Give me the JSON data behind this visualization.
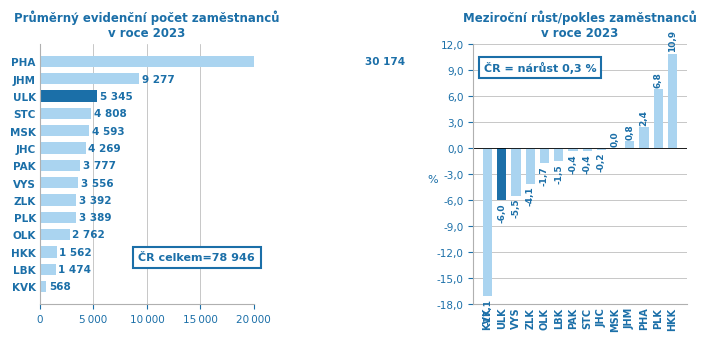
{
  "left_title": "Průměrný evidenční počet zaměstnanců\nv roce 2023",
  "left_categories": [
    "PHA",
    "JHM",
    "ULK",
    "STC",
    "MSK",
    "JHC",
    "PAK",
    "VYS",
    "ZLK",
    "PLK",
    "OLK",
    "HKK",
    "LBK",
    "KVK"
  ],
  "left_values": [
    30174,
    9277,
    5345,
    4808,
    4593,
    4269,
    3777,
    3556,
    3392,
    3389,
    2762,
    1562,
    1474,
    568
  ],
  "left_labels": [
    "30 174",
    "9 277",
    "5 345",
    "4 808",
    "4 593",
    "4 269",
    "3 777",
    "3 556",
    "3 392",
    "3 389",
    "2 762",
    "1 562",
    "1 474",
    "568"
  ],
  "left_bar_colors": [
    "#aad4f0",
    "#aad4f0",
    "#1b6fa8",
    "#aad4f0",
    "#aad4f0",
    "#aad4f0",
    "#aad4f0",
    "#aad4f0",
    "#aad4f0",
    "#aad4f0",
    "#aad4f0",
    "#aad4f0",
    "#aad4f0",
    "#aad4f0"
  ],
  "left_xlim": [
    0,
    20000
  ],
  "left_xticks": [
    0,
    5000,
    10000,
    15000,
    20000
  ],
  "left_annotation": "ČR celkem=78 946",
  "right_title": "Meziroční růst/pokles zaměstnanců\nv roce 2023",
  "right_categories": [
    "KVK",
    "ULK",
    "VYS",
    "ZLK",
    "OLK",
    "LBK",
    "PAK",
    "STC",
    "JHC",
    "MSK",
    "JHM",
    "PHA",
    "PLK",
    "HKK"
  ],
  "right_values": [
    -17.1,
    -6.0,
    -5.5,
    -4.1,
    -1.7,
    -1.5,
    -0.4,
    -0.4,
    -0.2,
    0.0,
    0.8,
    2.4,
    6.8,
    10.9
  ],
  "right_labels": [
    "-17,1",
    "-6,0",
    "-5,5",
    "-4,1",
    "-1,7",
    "-1,5",
    "-0,4",
    "-0,4",
    "-0,2",
    "0,0",
    "0,8",
    "2,4",
    "6,8",
    "10,9"
  ],
  "right_bar_colors": [
    "#aad4f0",
    "#1b6fa8",
    "#aad4f0",
    "#aad4f0",
    "#aad4f0",
    "#aad4f0",
    "#aad4f0",
    "#aad4f0",
    "#aad4f0",
    "#aad4f0",
    "#aad4f0",
    "#aad4f0",
    "#aad4f0",
    "#aad4f0"
  ],
  "right_ylim": [
    -18.0,
    12.0
  ],
  "right_yticks": [
    -18.0,
    -15.0,
    -12.0,
    -9.0,
    -6.0,
    -3.0,
    0.0,
    3.0,
    6.0,
    9.0,
    12.0
  ],
  "right_annotation": "ČR = nárůst 0,3 %",
  "ylabel_right": "%",
  "label_color": "#1b6fa8",
  "grid_color": "#b0b0b0",
  "title_color": "#1b6fa8",
  "annotation_box_color": "#1b6fa8",
  "background_color": "#ffffff"
}
